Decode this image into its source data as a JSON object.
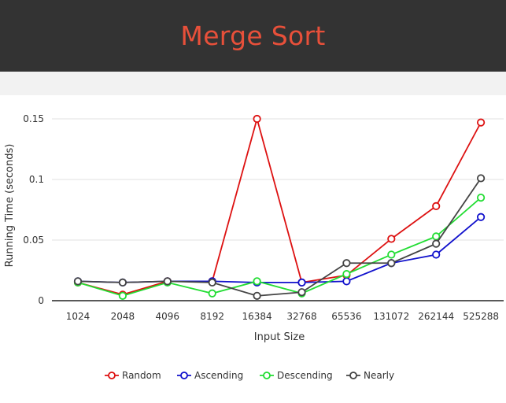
{
  "header": {
    "title": "Merge Sort"
  },
  "chart_data": {
    "type": "line",
    "x": [
      "1024",
      "2048",
      "4096",
      "8192",
      "16384",
      "32768",
      "65536",
      "131072",
      "262144",
      "525288"
    ],
    "xlabel": "Input Size",
    "ylabel": "Running Time (seconds)",
    "ylim": [
      0,
      0.15
    ],
    "yticks": [
      {
        "value": 0,
        "label": "0"
      },
      {
        "value": 0.05,
        "label": "0.05"
      },
      {
        "value": 0.1,
        "label": "0.1"
      },
      {
        "value": 0.15,
        "label": "0.15"
      }
    ],
    "grid": true,
    "legend": "bottom",
    "series": [
      {
        "name": "Random",
        "color": "#dd1111",
        "values": [
          0.015,
          0.005,
          0.016,
          0.016,
          0.15,
          0.015,
          0.021,
          0.051,
          0.078,
          0.147
        ]
      },
      {
        "name": "Ascending",
        "color": "#1111cc",
        "values": [
          0.016,
          0.015,
          0.016,
          0.016,
          0.015,
          0.015,
          0.016,
          0.031,
          0.038,
          0.069
        ]
      },
      {
        "name": "Descending",
        "color": "#22dd33",
        "values": [
          0.015,
          0.004,
          0.015,
          0.006,
          0.016,
          0.006,
          0.022,
          0.038,
          0.053,
          0.085
        ]
      },
      {
        "name": "Nearly",
        "color": "#444444",
        "values": [
          0.016,
          0.015,
          0.016,
          0.015,
          0.004,
          0.007,
          0.031,
          0.031,
          0.047,
          0.101
        ]
      }
    ]
  }
}
